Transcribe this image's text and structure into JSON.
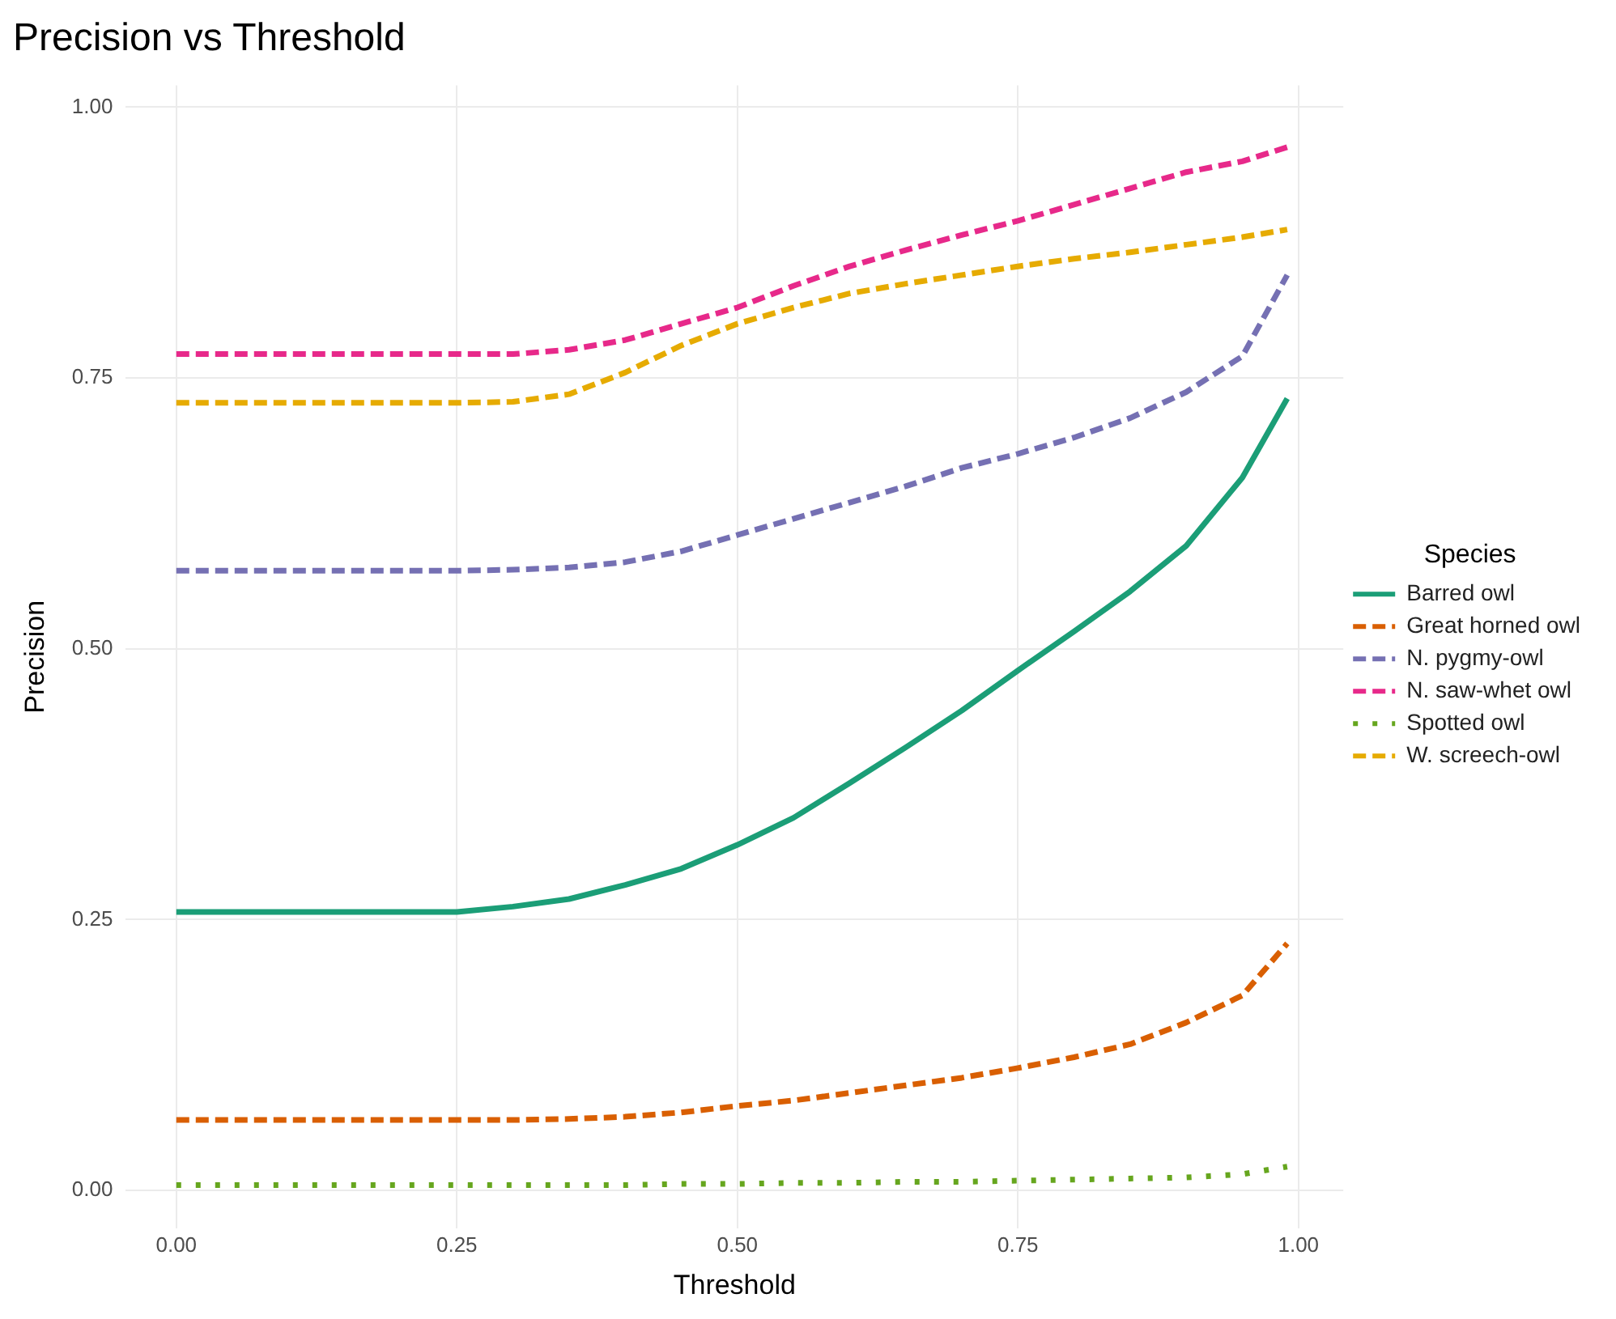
{
  "chart_data": {
    "type": "line",
    "title": "Precision vs Threshold",
    "xlabel": "Threshold",
    "ylabel": "Precision",
    "legend_title": "Species",
    "legend": "right",
    "grid": true,
    "marker": "none",
    "x": [
      0,
      0.1,
      0.2,
      0.25,
      0.3,
      0.35,
      0.4,
      0.45,
      0.5,
      0.55,
      0.6,
      0.65,
      0.7,
      0.75,
      0.8,
      0.85,
      0.9,
      0.95,
      0.99
    ],
    "xlim": [
      -0.045,
      1.04
    ],
    "ylim": [
      -0.035,
      1.02
    ],
    "xticks": [
      {
        "value": 0,
        "label": "0.00"
      },
      {
        "value": 0.25,
        "label": "0.25"
      },
      {
        "value": 0.5,
        "label": "0.50"
      },
      {
        "value": 0.75,
        "label": "0.75"
      },
      {
        "value": 1,
        "label": "1.00"
      }
    ],
    "yticks": [
      {
        "value": 0,
        "label": "0.00"
      },
      {
        "value": 0.25,
        "label": "0.25"
      },
      {
        "value": 0.5,
        "label": "0.50"
      },
      {
        "value": 0.75,
        "label": "0.75"
      },
      {
        "value": 1,
        "label": "1.00"
      }
    ],
    "series": [
      {
        "name": "Barred owl",
        "color": "#1b9e77",
        "line_style": "solid",
        "values": [
          0.257,
          0.257,
          0.257,
          0.257,
          0.262,
          0.269,
          0.282,
          0.297,
          0.319,
          0.344,
          0.376,
          0.409,
          0.443,
          0.48,
          0.516,
          0.553,
          0.595,
          0.658,
          0.731
        ]
      },
      {
        "name": "Great horned owl",
        "color": "#d95f02",
        "line_style": "dashed",
        "values": [
          0.065,
          0.065,
          0.065,
          0.065,
          0.065,
          0.066,
          0.068,
          0.072,
          0.078,
          0.083,
          0.09,
          0.097,
          0.104,
          0.113,
          0.123,
          0.135,
          0.155,
          0.18,
          0.228
        ]
      },
      {
        "name": "N. pygmy-owl",
        "color": "#7570b3",
        "line_style": "dashed",
        "values": [
          0.572,
          0.572,
          0.572,
          0.572,
          0.573,
          0.575,
          0.58,
          0.59,
          0.605,
          0.62,
          0.635,
          0.65,
          0.667,
          0.68,
          0.695,
          0.713,
          0.737,
          0.77,
          0.845
        ]
      },
      {
        "name": "N. saw-whet owl",
        "color": "#e7298a",
        "line_style": "dashed",
        "values": [
          0.772,
          0.772,
          0.772,
          0.772,
          0.772,
          0.776,
          0.785,
          0.8,
          0.815,
          0.835,
          0.853,
          0.868,
          0.882,
          0.895,
          0.91,
          0.925,
          0.94,
          0.95,
          0.963
        ]
      },
      {
        "name": "Spotted owl",
        "color": "#66a61e",
        "line_style": "dotted",
        "values": [
          0.005,
          0.005,
          0.005,
          0.005,
          0.005,
          0.005,
          0.005,
          0.006,
          0.006,
          0.007,
          0.007,
          0.008,
          0.008,
          0.009,
          0.01,
          0.011,
          0.012,
          0.015,
          0.022
        ]
      },
      {
        "name": "W. screech-owl",
        "color": "#e6ab02",
        "line_style": "dashed",
        "values": [
          0.727,
          0.727,
          0.727,
          0.727,
          0.728,
          0.735,
          0.755,
          0.78,
          0.8,
          0.815,
          0.828,
          0.837,
          0.845,
          0.853,
          0.86,
          0.866,
          0.873,
          0.88,
          0.887
        ]
      }
    ]
  }
}
